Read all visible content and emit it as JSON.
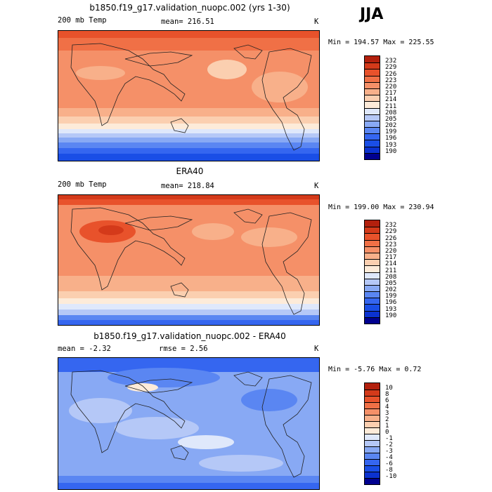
{
  "season": "JJA",
  "colors": {
    "abs": [
      "#00008f",
      "#0b32d0",
      "#1a4ee6",
      "#3566f0",
      "#5a86f2",
      "#88a9f4",
      "#b5c8f7",
      "#dfe8fb",
      "#fdebd9",
      "#fbcfb0",
      "#f8b08a",
      "#f59068",
      "#f07046",
      "#e8522b",
      "#d43a1a",
      "#b3200d",
      "#8a0a05"
    ],
    "diff": [
      "#00008f",
      "#0b32d0",
      "#1a4ee6",
      "#3566f0",
      "#5a86f2",
      "#88a9f4",
      "#b5c8f7",
      "#dfe8fb",
      "#fdebd9",
      "#fbcfb0",
      "#f8b08a",
      "#f59068",
      "#f07046",
      "#e8522b",
      "#d43a1a",
      "#b3200d",
      "#8a0a05"
    ]
  },
  "panels": [
    {
      "title": "b1850.f19_g17.validation_nuopc.002 (yrs 1-30)",
      "left": "200 mb Temp",
      "center": "mean= 216.51",
      "right": "K",
      "minmax": "Min = 194.57 Max = 225.55",
      "ticks": [
        "232",
        "229",
        "226",
        "223",
        "220",
        "217",
        "214",
        "211",
        "208",
        "205",
        "202",
        "199",
        "196",
        "193",
        "190"
      ]
    },
    {
      "title": "ERA40",
      "left": "200 mb Temp",
      "center": "mean= 218.84",
      "right": "K",
      "minmax": "Min = 199.00 Max = 230.94",
      "ticks": [
        "232",
        "229",
        "226",
        "223",
        "220",
        "217",
        "214",
        "211",
        "208",
        "205",
        "202",
        "199",
        "196",
        "193",
        "190"
      ]
    },
    {
      "title": "b1850.f19_g17.validation_nuopc.002 - ERA40",
      "left": "mean =   -2.32",
      "center": "rmse =    2.56",
      "right": "K",
      "minmax": "Min =  -5.76 Max =   0.72",
      "ticks": [
        "10",
        "8",
        "6",
        "4",
        "3",
        "2",
        "1",
        "0",
        "-1",
        "-2",
        "-3",
        "-4",
        "-6",
        "-8",
        "-10"
      ]
    }
  ]
}
